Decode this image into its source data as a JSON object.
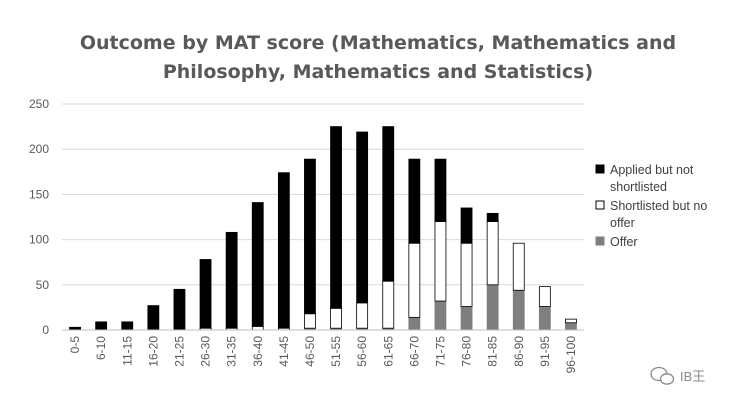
{
  "chart_data": {
    "type": "bar",
    "stacked": true,
    "title": "Outcome by MAT score (Mathematics, Mathematics and Philosophy, Mathematics and Statistics)",
    "title_lines": [
      "Outcome by MAT score (Mathematics, Mathematics and",
      "Philosophy, Mathematics and Statistics)"
    ],
    "xlabel": "",
    "ylabel": "",
    "ylim": [
      0,
      250
    ],
    "yticks": [
      0,
      50,
      100,
      150,
      200,
      250
    ],
    "grid": true,
    "legend_position": "right",
    "categories": [
      "0-5",
      "6-10",
      "11-15",
      "16-20",
      "21-25",
      "26-30",
      "31-35",
      "36-40",
      "41-45",
      "46-50",
      "51-55",
      "56-60",
      "61-65",
      "66-70",
      "71-75",
      "76-80",
      "81-85",
      "86-90",
      "91-95",
      "96-100"
    ],
    "series": [
      {
        "name": "Offer",
        "color": "#7f7f7f",
        "style": "gray",
        "values": [
          0,
          0,
          0,
          0,
          0,
          0,
          0,
          0,
          0,
          2,
          2,
          2,
          2,
          14,
          32,
          26,
          50,
          44,
          26,
          8
        ]
      },
      {
        "name": "Shortlisted but no offer",
        "color": "#ffffff",
        "style": "white",
        "values": [
          0,
          0,
          0,
          0,
          0,
          2,
          2,
          4,
          2,
          16,
          22,
          28,
          52,
          82,
          88,
          70,
          70,
          52,
          22,
          4
        ]
      },
      {
        "name": "Applied but not shortlisted",
        "color": "#000000",
        "style": "black",
        "values": [
          3,
          9,
          9,
          27,
          45,
          76,
          106,
          137,
          172,
          171,
          201,
          189,
          171,
          93,
          69,
          39,
          9,
          0,
          0,
          0
        ]
      }
    ],
    "legend": [
      {
        "series": "Applied but not shortlisted",
        "lines": [
          "Applied but not",
          "shortlisted"
        ]
      },
      {
        "series": "Shortlisted but no offer",
        "lines": [
          "Shortlisted but no",
          "offer"
        ]
      },
      {
        "series": "Offer",
        "lines": [
          "Offer"
        ]
      }
    ]
  },
  "watermark": {
    "text": "IB王",
    "icon": "wechat-icon"
  }
}
